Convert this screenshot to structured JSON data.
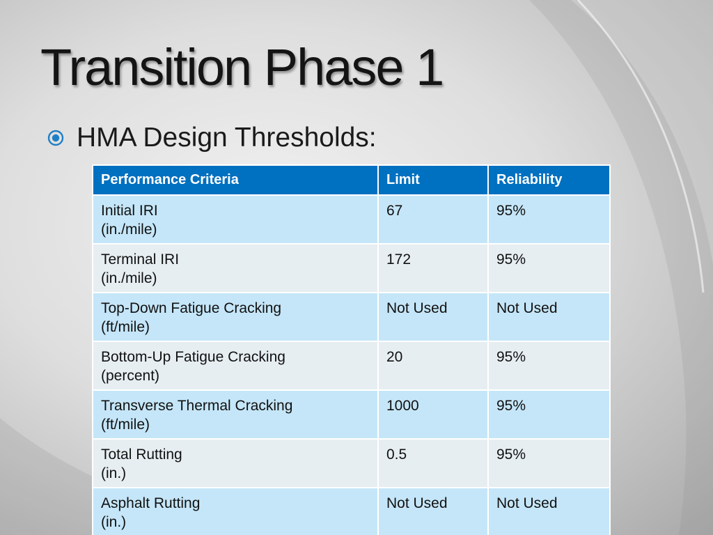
{
  "slide": {
    "title": "Transition Phase 1",
    "bullet": {
      "icon": "circled-dot-bullet-icon",
      "text": "HMA Design Thresholds:"
    }
  },
  "colors": {
    "header_bg": "#0070c0",
    "row_light_blue": "#c5e6f8",
    "row_light_gray": "#e6eef2",
    "bullet_accent": "#1f7fc6"
  },
  "table": {
    "headers": [
      "Performance Criteria",
      "Limit",
      "Reliability"
    ],
    "rows": [
      {
        "criteria": "Initial IRI",
        "unit": "(in./mile)",
        "limit": "67",
        "reliability": "95%"
      },
      {
        "criteria": "Terminal IRI",
        "unit": "(in./mile)",
        "limit": "172",
        "reliability": "95%"
      },
      {
        "criteria": "Top-Down Fatigue Cracking",
        "unit": "(ft/mile)",
        "limit": "Not Used",
        "reliability": "Not Used"
      },
      {
        "criteria": "Bottom-Up Fatigue Cracking",
        "unit": "(percent)",
        "limit": "20",
        "reliability": "95%"
      },
      {
        "criteria": "Transverse Thermal Cracking",
        "unit": "(ft/mile)",
        "limit": "1000",
        "reliability": "95%"
      },
      {
        "criteria": "Total Rutting",
        "unit": "(in.)",
        "limit": "0.5",
        "reliability": "95%"
      },
      {
        "criteria": "Asphalt Rutting",
        "unit": "(in.)",
        "limit": "Not Used",
        "reliability": "Not Used"
      }
    ]
  }
}
